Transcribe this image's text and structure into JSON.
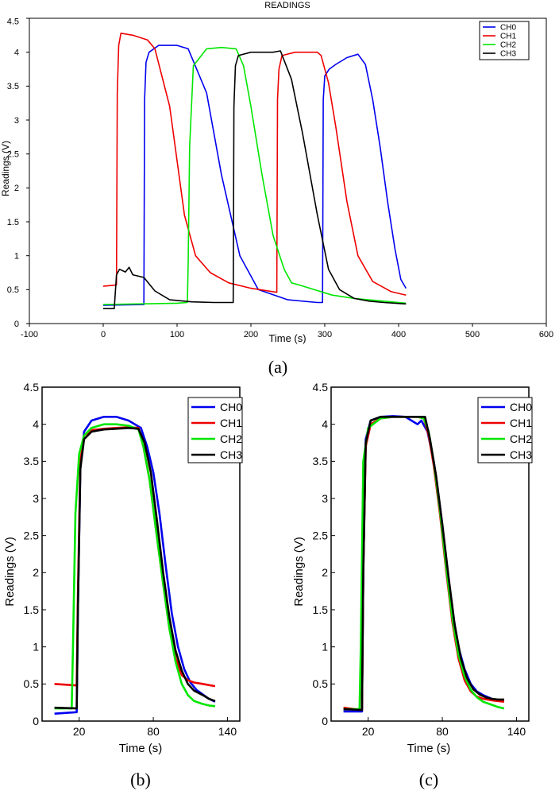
{
  "colors": {
    "CH0": "#0000ee",
    "CH1": "#ee0000",
    "CH2": "#00e600",
    "CH3": "#000000"
  },
  "chart_data": [
    {
      "type": "line",
      "title": "READINGS",
      "caption": "(a)",
      "xlabel": "Time (s)",
      "ylabel": "Readings (V)",
      "xlim": [
        -100,
        600
      ],
      "ylim": [
        0,
        4.5
      ],
      "xticks": [
        "-100",
        "0",
        "100",
        "200",
        "300",
        "400",
        "500",
        "600"
      ],
      "xtick_values": [
        -100,
        0,
        100,
        200,
        300,
        400,
        500,
        600
      ],
      "yticks": [
        "0",
        "0.5",
        "1",
        "1.5",
        "2",
        "2.5",
        "3",
        "3.5",
        "4",
        "4.5"
      ],
      "ytick_values": [
        0,
        0.5,
        1,
        1.5,
        2,
        2.5,
        3,
        3.5,
        4,
        4.5
      ],
      "legend": "top-right",
      "series": [
        {
          "name": "CH0",
          "x": [
            0,
            55,
            56,
            58,
            62,
            75,
            100,
            115,
            140,
            160,
            185,
            210,
            250,
            290,
            297,
            298,
            300,
            306,
            315,
            330,
            345,
            355,
            365,
            375,
            385,
            395,
            403,
            410
          ],
          "y": [
            0.27,
            0.28,
            3.3,
            3.85,
            4.0,
            4.1,
            4.1,
            4.05,
            3.4,
            2.2,
            1.0,
            0.5,
            0.35,
            0.31,
            0.31,
            3.3,
            3.65,
            3.75,
            3.82,
            3.92,
            3.97,
            3.82,
            3.3,
            2.6,
            1.8,
            1.1,
            0.65,
            0.52
          ]
        },
        {
          "name": "CH1",
          "x": [
            0,
            18,
            19,
            21,
            24,
            40,
            60,
            70,
            90,
            100,
            110,
            125,
            145,
            170,
            200,
            235,
            236,
            238,
            242,
            260,
            290,
            295,
            305,
            315,
            330,
            345,
            365,
            390,
            410
          ],
          "y": [
            0.55,
            0.57,
            3.4,
            4.1,
            4.28,
            4.25,
            4.18,
            4.05,
            3.2,
            2.4,
            1.6,
            1.0,
            0.75,
            0.6,
            0.52,
            0.46,
            3.3,
            3.75,
            3.95,
            4.0,
            4.0,
            3.95,
            3.55,
            2.9,
            1.8,
            1.0,
            0.62,
            0.47,
            0.42
          ]
        },
        {
          "name": "CH2",
          "x": [
            0,
            100,
            114,
            115,
            117,
            122,
            140,
            160,
            180,
            190,
            200,
            215,
            230,
            245,
            255,
            265,
            280,
            310,
            340,
            380,
            410
          ],
          "y": [
            0.28,
            0.3,
            0.31,
            0.9,
            2.6,
            3.8,
            4.05,
            4.07,
            4.05,
            3.8,
            3.2,
            2.2,
            1.3,
            0.8,
            0.6,
            0.57,
            0.52,
            0.42,
            0.37,
            0.33,
            0.3
          ]
        },
        {
          "name": "CH3",
          "x": [
            0,
            15,
            18,
            22,
            30,
            35,
            40,
            55,
            70,
            90,
            120,
            150,
            176,
            177,
            179,
            183,
            200,
            230,
            240,
            255,
            270,
            290,
            305,
            320,
            340,
            360,
            380,
            410
          ],
          "y": [
            0.22,
            0.22,
            0.72,
            0.8,
            0.76,
            0.83,
            0.72,
            0.68,
            0.48,
            0.35,
            0.32,
            0.31,
            0.31,
            3.2,
            3.8,
            3.95,
            4.0,
            4.0,
            4.02,
            3.6,
            2.8,
            1.6,
            0.8,
            0.5,
            0.37,
            0.33,
            0.31,
            0.29
          ]
        }
      ]
    },
    {
      "type": "line",
      "caption": "(b)",
      "xlabel": "Time (s)",
      "ylabel": "Readings (V)",
      "xlim": [
        -10,
        150
      ],
      "ylim": [
        0,
        4.5
      ],
      "xticks": [
        "20",
        "80",
        "140"
      ],
      "xtick_values": [
        20,
        80,
        140
      ],
      "yticks": [
        "0",
        "0.5",
        "1",
        "1.5",
        "2",
        "2.5",
        "3",
        "3.5",
        "4",
        "4.5"
      ],
      "ytick_values": [
        0,
        0.5,
        1,
        1.5,
        2,
        2.5,
        3,
        3.5,
        4,
        4.5
      ],
      "legend": "top-right",
      "series": [
        {
          "name": "CH0",
          "x": [
            0,
            18,
            19,
            21,
            24,
            30,
            40,
            50,
            60,
            70,
            75,
            80,
            85,
            90,
            95,
            100,
            105,
            110,
            115,
            120,
            125,
            130
          ],
          "y": [
            0.1,
            0.12,
            1.5,
            3.4,
            3.9,
            4.05,
            4.1,
            4.1,
            4.05,
            3.95,
            3.7,
            3.35,
            2.8,
            2.1,
            1.45,
            1.0,
            0.7,
            0.52,
            0.42,
            0.36,
            0.3,
            0.26
          ]
        },
        {
          "name": "CH1",
          "x": [
            0,
            18,
            19,
            21,
            24,
            30,
            40,
            50,
            60,
            68,
            72,
            77,
            82,
            88,
            93,
            98,
            103,
            108,
            113,
            120,
            130
          ],
          "y": [
            0.5,
            0.48,
            1.7,
            3.5,
            3.85,
            3.92,
            3.94,
            3.95,
            3.96,
            3.95,
            3.7,
            3.25,
            2.6,
            1.85,
            1.25,
            0.85,
            0.62,
            0.55,
            0.52,
            0.5,
            0.47
          ]
        },
        {
          "name": "CH2",
          "x": [
            0,
            14,
            15,
            17,
            20,
            24,
            30,
            40,
            50,
            60,
            68,
            72,
            77,
            82,
            88,
            93,
            98,
            103,
            108,
            113,
            120,
            125,
            130
          ],
          "y": [
            0.17,
            0.17,
            1.0,
            2.8,
            3.6,
            3.85,
            3.95,
            4.0,
            4.0,
            3.98,
            3.93,
            3.7,
            3.25,
            2.6,
            1.85,
            1.25,
            0.8,
            0.5,
            0.35,
            0.27,
            0.23,
            0.21,
            0.2
          ]
        },
        {
          "name": "CH3",
          "x": [
            0,
            18,
            19,
            21,
            24,
            30,
            40,
            50,
            60,
            68,
            73,
            78,
            83,
            88,
            93,
            98,
            103,
            108,
            113,
            120,
            125,
            130
          ],
          "y": [
            0.18,
            0.17,
            1.5,
            3.4,
            3.8,
            3.9,
            3.93,
            3.94,
            3.95,
            3.94,
            3.75,
            3.35,
            2.7,
            2.0,
            1.4,
            0.95,
            0.68,
            0.5,
            0.41,
            0.35,
            0.3,
            0.27
          ]
        }
      ]
    },
    {
      "type": "line",
      "caption": "(c)",
      "xlabel": "Time (s)",
      "ylabel": "Readings (V)",
      "xlim": [
        -10,
        150
      ],
      "ylim": [
        0,
        4.5
      ],
      "xticks": [
        "20",
        "80",
        "140"
      ],
      "xtick_values": [
        20,
        80,
        140
      ],
      "yticks": [
        "0",
        "0.5",
        "1",
        "1.5",
        "2",
        "2.5",
        "3",
        "3.5",
        "4",
        "4.5"
      ],
      "ytick_values": [
        0,
        0.5,
        1,
        1.5,
        2,
        2.5,
        3,
        3.5,
        4,
        4.5
      ],
      "legend": "top-right",
      "series": [
        {
          "name": "CH0",
          "x": [
            0,
            15,
            16,
            18,
            22,
            30,
            40,
            50,
            55,
            60,
            63,
            68,
            73,
            78,
            83,
            88,
            93,
            98,
            103,
            108,
            113,
            120,
            125,
            130
          ],
          "y": [
            0.13,
            0.13,
            2.0,
            3.8,
            4.05,
            4.1,
            4.11,
            4.1,
            4.05,
            4.0,
            4.05,
            3.9,
            3.5,
            2.9,
            2.2,
            1.5,
            1.0,
            0.7,
            0.5,
            0.4,
            0.35,
            0.3,
            0.28,
            0.27
          ]
        },
        {
          "name": "CH1",
          "x": [
            0,
            15,
            16,
            18,
            22,
            30,
            40,
            50,
            60,
            65,
            69,
            73,
            78,
            83,
            88,
            93,
            98,
            103,
            108,
            113,
            120,
            130
          ],
          "y": [
            0.18,
            0.15,
            2.0,
            3.7,
            4.0,
            4.08,
            4.1,
            4.1,
            4.1,
            4.08,
            3.85,
            3.45,
            2.8,
            2.05,
            1.35,
            0.85,
            0.55,
            0.4,
            0.33,
            0.3,
            0.28,
            0.26
          ]
        },
        {
          "name": "CH2",
          "x": [
            0,
            13,
            14,
            16,
            20,
            30,
            40,
            50,
            60,
            65,
            69,
            73,
            78,
            83,
            88,
            93,
            98,
            103,
            108,
            113,
            120,
            125,
            130
          ],
          "y": [
            0.16,
            0.16,
            1.0,
            3.5,
            3.95,
            4.08,
            4.1,
            4.1,
            4.1,
            4.08,
            3.9,
            3.5,
            2.85,
            2.1,
            1.4,
            0.9,
            0.6,
            0.42,
            0.32,
            0.26,
            0.22,
            0.19,
            0.17
          ]
        },
        {
          "name": "CH3",
          "x": [
            0,
            15,
            16,
            18,
            22,
            30,
            40,
            50,
            60,
            66,
            70,
            75,
            80,
            85,
            90,
            95,
            100,
            105,
            110,
            115,
            120,
            125,
            130
          ],
          "y": [
            0.16,
            0.15,
            2.0,
            3.75,
            4.05,
            4.1,
            4.1,
            4.1,
            4.1,
            4.1,
            3.8,
            3.3,
            2.65,
            1.95,
            1.3,
            0.85,
            0.58,
            0.43,
            0.36,
            0.32,
            0.3,
            0.29,
            0.29
          ]
        }
      ]
    }
  ]
}
